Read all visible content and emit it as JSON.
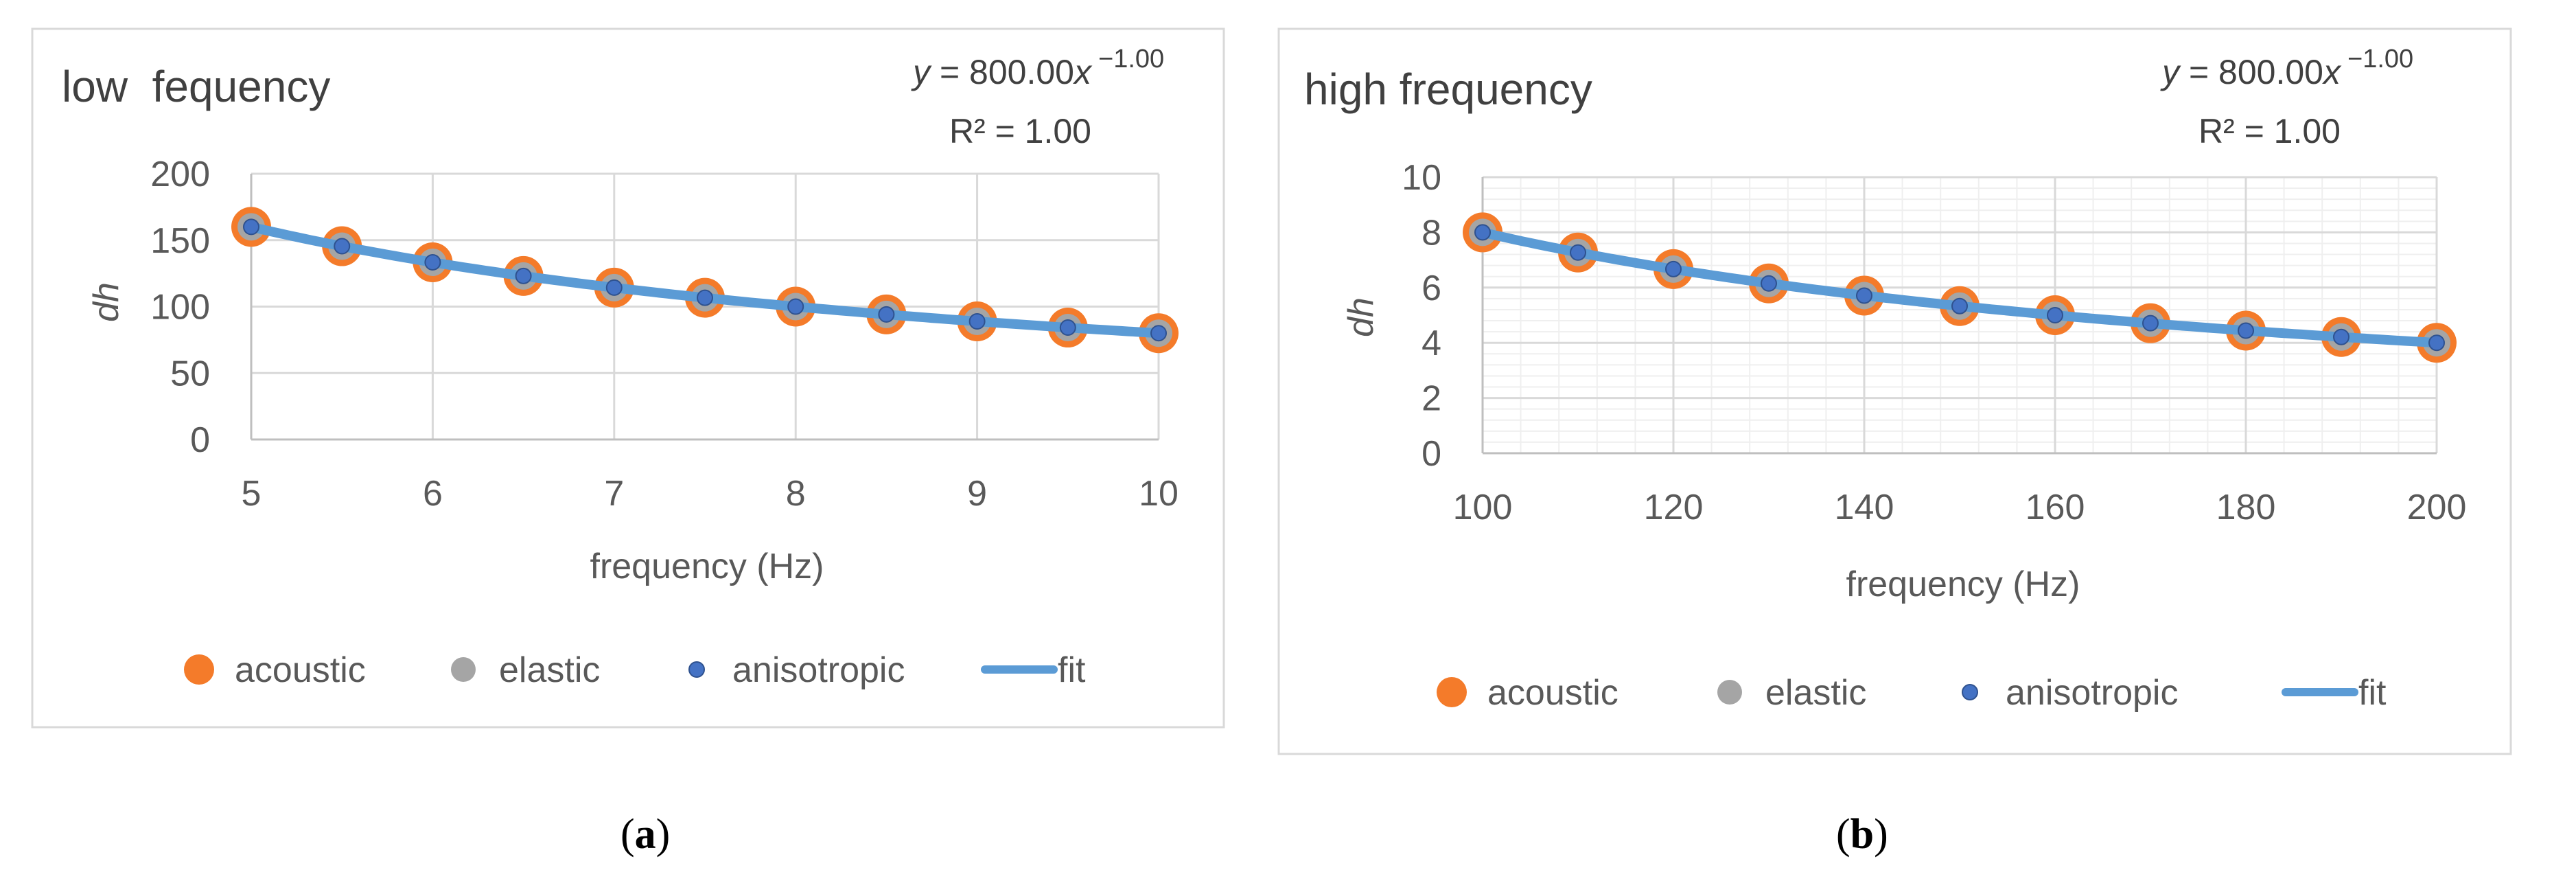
{
  "chart_data": [
    {
      "panel": "a",
      "type": "scatter",
      "title": "low  fequency",
      "xlabel": "frequency (Hz)",
      "ylabel": "dh",
      "xlim": [
        5,
        10
      ],
      "ylim": [
        0,
        200
      ],
      "xticks": [
        5,
        6,
        7,
        8,
        9,
        10
      ],
      "yticks": [
        0,
        50,
        100,
        150,
        200
      ],
      "x_gridlines": "major",
      "y_gridlines": "major",
      "legend_position": "bottom",
      "equation": {
        "y_lhs": "y",
        "eq_mid": " = 800.00",
        "x_var": "x",
        "exponent": "−1.00",
        "r2_text": "R² = 1.00"
      },
      "x": [
        5,
        5.5,
        6,
        6.5,
        7,
        7.5,
        8,
        8.5,
        9,
        9.5,
        10
      ],
      "series": [
        {
          "name": "acoustic",
          "color": "#F47B2A",
          "values": [
            160,
            145.45,
            133.33,
            123.08,
            114.29,
            106.67,
            100,
            94.12,
            88.89,
            84.21,
            80
          ]
        },
        {
          "name": "elastic",
          "color": "#A5A5A5",
          "values": [
            160,
            145.45,
            133.33,
            123.08,
            114.29,
            106.67,
            100,
            94.12,
            88.89,
            84.21,
            80
          ]
        },
        {
          "name": "anisotropic",
          "color": "#4472C4",
          "values": [
            160,
            145.45,
            133.33,
            123.08,
            114.29,
            106.67,
            100,
            94.12,
            88.89,
            84.21,
            80
          ]
        },
        {
          "name": "fit",
          "color": "#5B9BD5",
          "fit": "power",
          "coefficient": 800,
          "exponent": -1
        }
      ]
    },
    {
      "panel": "b",
      "type": "scatter",
      "title": "high frequency",
      "xlabel": "frequency (Hz)",
      "ylabel": "dh",
      "xlim": [
        100,
        200
      ],
      "ylim": [
        0,
        10
      ],
      "xticks": [
        100,
        120,
        140,
        160,
        180,
        200
      ],
      "yticks": [
        0,
        2,
        4,
        6,
        8,
        10
      ],
      "x_gridlines": "major and minor",
      "y_gridlines": "major and minor",
      "legend_position": "bottom",
      "equation": {
        "y_lhs": "y",
        "eq_mid": " = 800.00",
        "x_var": "x",
        "exponent": "−1.00",
        "r2_text": "R² = 1.00"
      },
      "x": [
        100,
        110,
        120,
        130,
        140,
        150,
        160,
        170,
        180,
        190,
        200
      ],
      "series": [
        {
          "name": "acoustic",
          "color": "#F47B2A",
          "values": [
            8,
            7.27,
            6.67,
            6.15,
            5.71,
            5.33,
            5,
            4.71,
            4.44,
            4.21,
            4
          ]
        },
        {
          "name": "elastic",
          "color": "#A5A5A5",
          "values": [
            8,
            7.27,
            6.67,
            6.15,
            5.71,
            5.33,
            5,
            4.71,
            4.44,
            4.21,
            4
          ]
        },
        {
          "name": "anisotropic",
          "color": "#4472C4",
          "values": [
            8,
            7.27,
            6.67,
            6.15,
            5.71,
            5.33,
            5,
            4.71,
            4.44,
            4.21,
            4
          ]
        },
        {
          "name": "fit",
          "color": "#5B9BD5",
          "fit": "power",
          "coefficient": 800,
          "exponent": -1
        }
      ]
    }
  ],
  "captions": {
    "a": "a",
    "b": "b"
  },
  "style": {
    "text_color": "#595959",
    "grid_color": "#D9D9D9",
    "frame_color": "#D9D9D9",
    "axis_color": "#D9D9D9"
  }
}
